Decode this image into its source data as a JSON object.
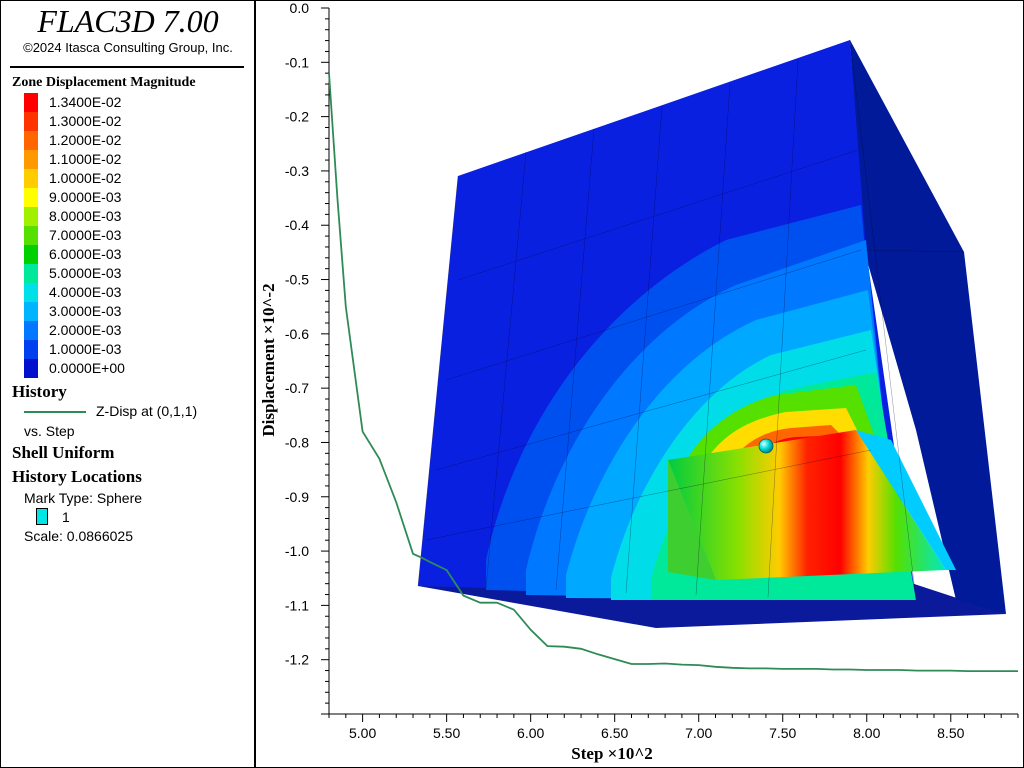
{
  "app": {
    "title": "FLAC3D 7.00",
    "copyright": "©2024 Itasca Consulting Group, Inc."
  },
  "legend": {
    "contour_title": "Zone Displacement Magnitude",
    "contour_items": [
      {
        "label": "1.3400E-02",
        "color": "#ff0000"
      },
      {
        "label": "1.3000E-02",
        "color": "#ff3300"
      },
      {
        "label": "1.2000E-02",
        "color": "#ff6600"
      },
      {
        "label": "1.1000E-02",
        "color": "#ff9900"
      },
      {
        "label": "1.0000E-02",
        "color": "#ffcc00"
      },
      {
        "label": "9.0000E-03",
        "color": "#ffff00"
      },
      {
        "label": "8.0000E-03",
        "color": "#a0f000"
      },
      {
        "label": "7.0000E-03",
        "color": "#55e000"
      },
      {
        "label": "6.0000E-03",
        "color": "#00d000"
      },
      {
        "label": "5.0000E-03",
        "color": "#00e89a"
      },
      {
        "label": "4.0000E-03",
        "color": "#00e0e8"
      },
      {
        "label": "3.0000E-03",
        "color": "#00b4ff"
      },
      {
        "label": "2.0000E-03",
        "color": "#0078ff"
      },
      {
        "label": "1.0000E-03",
        "color": "#0040ee"
      },
      {
        "label": "0.0000E+00",
        "color": "#0010cc"
      }
    ],
    "history_title": "History",
    "history_entry": "Z-Disp at (0,1,1)",
    "history_color": "#2e8b57",
    "history_vs": "vs. Step",
    "shell_title": "Shell Uniform",
    "locations_title": "History Locations",
    "mark_type": "Mark Type: Sphere",
    "mark_id": "1",
    "mark_color": "#00e5e5",
    "scale": "Scale: 0.0866025"
  },
  "chart_data": {
    "type": "line",
    "xlabel": "Step ×10^2",
    "ylabel": "Displacement ×10^-2",
    "xlim": [
      4.8,
      8.9
    ],
    "ylim": [
      -1.3,
      0.0
    ],
    "x_ticks": [
      "5.00",
      "5.50",
      "6.00",
      "6.50",
      "7.00",
      "7.50",
      "8.00",
      "8.50"
    ],
    "y_ticks": [
      "0.0",
      "-0.1",
      "-0.2",
      "-0.3",
      "-0.4",
      "-0.5",
      "-0.6",
      "-0.7",
      "-0.8",
      "-0.9",
      "-1.0",
      "-1.1",
      "-1.2"
    ],
    "series": [
      {
        "name": "Z-Disp at (0,1,1)",
        "color": "#2e8b57",
        "x": [
          4.8,
          4.85,
          4.9,
          5.0,
          5.1,
          5.2,
          5.3,
          5.35,
          5.4,
          5.5,
          5.6,
          5.7,
          5.8,
          5.9,
          6.0,
          6.1,
          6.2,
          6.3,
          6.4,
          6.5,
          6.6,
          6.7,
          6.8,
          6.9,
          7.0,
          7.1,
          7.2,
          7.3,
          7.4,
          7.5,
          7.6,
          7.7,
          7.8,
          7.9,
          8.0,
          8.1,
          8.2,
          8.3,
          8.4,
          8.5,
          8.6,
          8.7,
          8.8,
          8.9
        ],
        "y": [
          -0.12,
          -0.35,
          -0.55,
          -0.78,
          -0.83,
          -0.91,
          -1.005,
          -1.012,
          -1.02,
          -1.035,
          -1.082,
          -1.095,
          -1.095,
          -1.108,
          -1.145,
          -1.175,
          -1.176,
          -1.18,
          -1.19,
          -1.199,
          -1.208,
          -1.208,
          -1.207,
          -1.209,
          -1.21,
          -1.213,
          -1.215,
          -1.216,
          -1.216,
          -1.217,
          -1.217,
          -1.217,
          -1.218,
          -1.218,
          -1.219,
          -1.219,
          -1.219,
          -1.22,
          -1.22,
          -1.22,
          -1.221,
          -1.221,
          -1.221,
          -1.221
        ]
      }
    ]
  }
}
